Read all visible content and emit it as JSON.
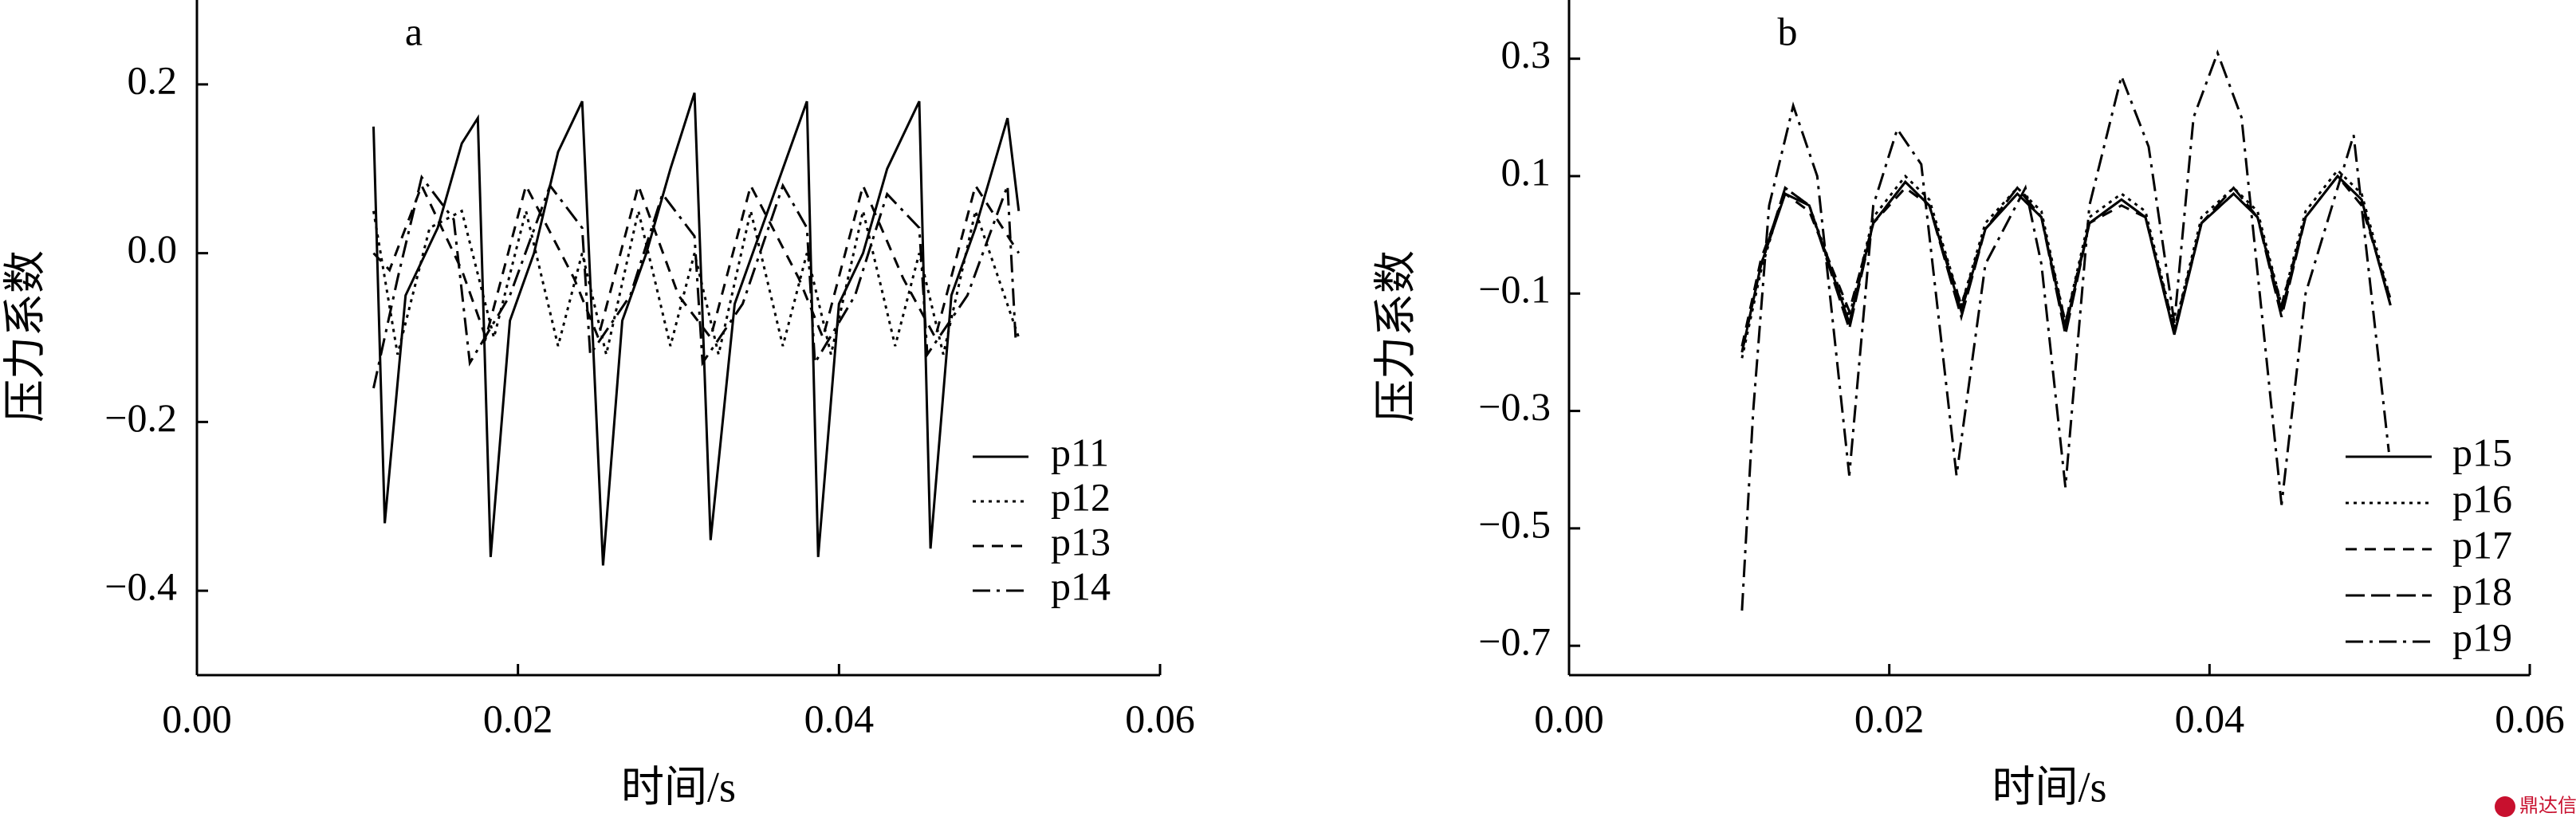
{
  "chart_data": [
    {
      "type": "line",
      "title": "a",
      "ylabel": "压力系数",
      "xlabel": "时间/s",
      "xlim": [
        0,
        0.06
      ],
      "ylim": [
        -0.5,
        0.3
      ],
      "xticks": [
        {
          "value": 0,
          "label": "0.00"
        },
        {
          "value": 0.02,
          "label": "0.02"
        },
        {
          "value": 0.04,
          "label": "0.04"
        },
        {
          "value": 0.06,
          "label": "0.06"
        }
      ],
      "yticks": [
        {
          "value": 0.2,
          "label": "0.2"
        },
        {
          "value": 0,
          "label": "0.0"
        },
        {
          "value": -0.2,
          "label": "−0.2"
        },
        {
          "value": -0.4,
          "label": "−0.4"
        }
      ],
      "legend": "lower right",
      "series": [
        {
          "name": "p11",
          "color": "#000000",
          "line_style": "solid",
          "x": [
            0.011,
            0.0117,
            0.013,
            0.015,
            0.0165,
            0.0175,
            0.0183,
            0.0195,
            0.021,
            0.0225,
            0.024,
            0.0253,
            0.0265,
            0.028,
            0.0295,
            0.031,
            0.032,
            0.0335,
            0.035,
            0.0365,
            0.038,
            0.0387,
            0.04,
            0.0415,
            0.043,
            0.045,
            0.0457,
            0.047,
            0.0485,
            0.0505,
            0.0512
          ],
          "values": [
            0.15,
            -0.32,
            -0.05,
            0.03,
            0.13,
            0.16,
            -0.36,
            -0.08,
            0.0,
            0.12,
            0.18,
            -0.37,
            -0.08,
            0.0,
            0.1,
            0.19,
            -0.34,
            -0.06,
            0.02,
            0.1,
            0.18,
            -0.36,
            -0.06,
            0.0,
            0.1,
            0.18,
            -0.35,
            -0.05,
            0.03,
            0.16,
            0.05
          ]
        },
        {
          "name": "p12",
          "color": "#000000",
          "line_style": "dotted",
          "x": [
            0.011,
            0.0125,
            0.0145,
            0.0165,
            0.0185,
            0.0205,
            0.0225,
            0.024,
            0.0255,
            0.0275,
            0.0295,
            0.031,
            0.0325,
            0.0345,
            0.0365,
            0.038,
            0.0395,
            0.0415,
            0.0435,
            0.045,
            0.0465,
            0.0485,
            0.0512
          ],
          "values": [
            0.05,
            -0.12,
            0.03,
            0.05,
            -0.1,
            0.05,
            -0.11,
            0.0,
            -0.12,
            0.05,
            -0.11,
            0.0,
            -0.12,
            0.05,
            -0.11,
            0.0,
            -0.12,
            0.05,
            -0.11,
            0.0,
            -0.12,
            0.05,
            -0.1
          ]
        },
        {
          "name": "p13",
          "color": "#000000",
          "line_style": "dashed",
          "x": [
            0.011,
            0.012,
            0.014,
            0.0165,
            0.018,
            0.0205,
            0.0235,
            0.025,
            0.0275,
            0.03,
            0.032,
            0.0345,
            0.0375,
            0.039,
            0.0415,
            0.044,
            0.046,
            0.0485,
            0.0512
          ],
          "values": [
            0.0,
            -0.02,
            0.08,
            -0.02,
            -0.1,
            0.08,
            -0.03,
            -0.1,
            0.08,
            -0.05,
            -0.1,
            0.08,
            -0.03,
            -0.1,
            0.08,
            -0.03,
            -0.1,
            0.08,
            0.0
          ]
        },
        {
          "name": "p14",
          "color": "#000000",
          "line_style": "dashdot",
          "x": [
            0.011,
            0.0125,
            0.014,
            0.016,
            0.017,
            0.0195,
            0.022,
            0.024,
            0.0245,
            0.027,
            0.029,
            0.031,
            0.0315,
            0.034,
            0.0365,
            0.038,
            0.0385,
            0.041,
            0.043,
            0.045,
            0.0455,
            0.048,
            0.0505,
            0.051
          ],
          "values": [
            -0.16,
            -0.03,
            0.09,
            0.04,
            -0.13,
            -0.05,
            0.08,
            0.03,
            -0.12,
            -0.05,
            0.07,
            0.02,
            -0.13,
            -0.06,
            0.08,
            0.03,
            -0.13,
            -0.05,
            0.07,
            0.03,
            -0.12,
            -0.05,
            0.08,
            -0.1
          ]
        }
      ]
    },
    {
      "type": "line",
      "title": "b",
      "ylabel": "压力系数",
      "xlabel": "时间/s",
      "xlim": [
        0,
        0.06
      ],
      "ylim": [
        -0.75,
        0.4
      ],
      "xticks": [
        {
          "value": 0,
          "label": "0.00"
        },
        {
          "value": 0.02,
          "label": "0.02"
        },
        {
          "value": 0.04,
          "label": "0.04"
        },
        {
          "value": 0.06,
          "label": "0.06"
        }
      ],
      "yticks": [
        0.3,
        0.1,
        {
          "value": -0.1,
          "label": "−0.1"
        },
        {
          "value": -0.3,
          "label": "−0.3"
        },
        {
          "value": -0.5,
          "label": "−0.5"
        },
        {
          "value": -0.7,
          "label": "−0.7"
        }
      ],
      "legend": "lower right",
      "series": [
        {
          "name": "p15",
          "color": "#000000",
          "line_style": "solid",
          "x": [
            0.0108,
            0.012,
            0.0135,
            0.015,
            0.0175,
            0.019,
            0.021,
            0.0225,
            0.0245,
            0.026,
            0.028,
            0.0295,
            0.031,
            0.0325,
            0.0345,
            0.036,
            0.0378,
            0.0395,
            0.0415,
            0.043,
            0.0445,
            0.046,
            0.048,
            0.0495,
            0.0513
          ],
          "values": [
            -0.2,
            -0.05,
            0.07,
            0.05,
            -0.15,
            0.02,
            0.09,
            0.05,
            -0.13,
            0.01,
            0.07,
            0.03,
            -0.16,
            0.02,
            0.06,
            0.03,
            -0.17,
            0.02,
            0.07,
            0.03,
            -0.13,
            0.03,
            0.1,
            0.06,
            -0.12
          ]
        },
        {
          "name": "p16",
          "color": "#000000",
          "line_style": "dotted",
          "x": [
            0.0108,
            0.012,
            0.0135,
            0.015,
            0.0175,
            0.019,
            0.021,
            0.0225,
            0.0245,
            0.026,
            0.028,
            0.0295,
            0.031,
            0.0325,
            0.0345,
            0.036,
            0.0378,
            0.0395,
            0.0415,
            0.043,
            0.0445,
            0.046,
            0.048,
            0.0495,
            0.0513
          ],
          "values": [
            -0.21,
            -0.06,
            0.08,
            0.05,
            -0.14,
            0.03,
            0.1,
            0.06,
            -0.12,
            0.02,
            0.08,
            0.04,
            -0.15,
            0.03,
            0.07,
            0.04,
            -0.16,
            0.03,
            0.08,
            0.04,
            -0.12,
            0.04,
            0.11,
            0.07,
            -0.11
          ]
        },
        {
          "name": "p17",
          "color": "#000000",
          "line_style": "dashed",
          "x": [
            0.0108,
            0.012,
            0.0135,
            0.015,
            0.0175,
            0.019,
            0.021,
            0.0225,
            0.0245,
            0.026,
            0.028,
            0.0295,
            0.031,
            0.0325,
            0.0345,
            0.036,
            0.0378,
            0.0395,
            0.0415,
            0.043,
            0.0445,
            0.046,
            0.048,
            0.0495,
            0.0513
          ],
          "values": [
            -0.19,
            -0.04,
            0.07,
            0.04,
            -0.13,
            0.02,
            0.08,
            0.05,
            -0.12,
            0.01,
            0.07,
            0.03,
            -0.15,
            0.02,
            0.05,
            0.03,
            -0.16,
            0.02,
            0.07,
            0.03,
            -0.12,
            0.03,
            0.1,
            0.05,
            -0.11
          ]
        },
        {
          "name": "p18",
          "color": "#000000",
          "line_style": "longdash",
          "x": [
            0.0108,
            0.012,
            0.0135,
            0.015,
            0.0175,
            0.019,
            0.021,
            0.0225,
            0.0245,
            0.026,
            0.028,
            0.0295,
            0.031,
            0.0325,
            0.0345,
            0.036,
            0.0378,
            0.0395,
            0.0415,
            0.043,
            0.0445,
            0.046,
            0.048,
            0.0495,
            0.0513
          ],
          "values": [
            -0.2,
            -0.05,
            0.08,
            0.05,
            -0.16,
            0.02,
            0.09,
            0.05,
            -0.14,
            0.01,
            0.08,
            0.03,
            -0.17,
            0.02,
            0.06,
            0.03,
            -0.17,
            0.02,
            0.08,
            0.03,
            -0.14,
            0.03,
            0.1,
            0.06,
            -0.12
          ]
        },
        {
          "name": "p19",
          "color": "#000000",
          "line_style": "dashdot",
          "x": [
            0.0108,
            0.0115,
            0.0125,
            0.014,
            0.0155,
            0.0175,
            0.019,
            0.0205,
            0.022,
            0.0242,
            0.026,
            0.0285,
            0.0295,
            0.031,
            0.0325,
            0.0345,
            0.0362,
            0.0378,
            0.039,
            0.0405,
            0.042,
            0.0445,
            0.046,
            0.049,
            0.0512
          ],
          "values": [
            -0.64,
            -0.3,
            0.05,
            0.22,
            0.1,
            -0.41,
            0.05,
            0.18,
            0.12,
            -0.41,
            -0.05,
            0.08,
            -0.05,
            -0.43,
            0.05,
            0.27,
            0.15,
            -0.15,
            0.2,
            0.31,
            0.2,
            -0.46,
            -0.1,
            0.17,
            -0.37
          ]
        }
      ]
    }
  ],
  "watermark": "鼎达信"
}
